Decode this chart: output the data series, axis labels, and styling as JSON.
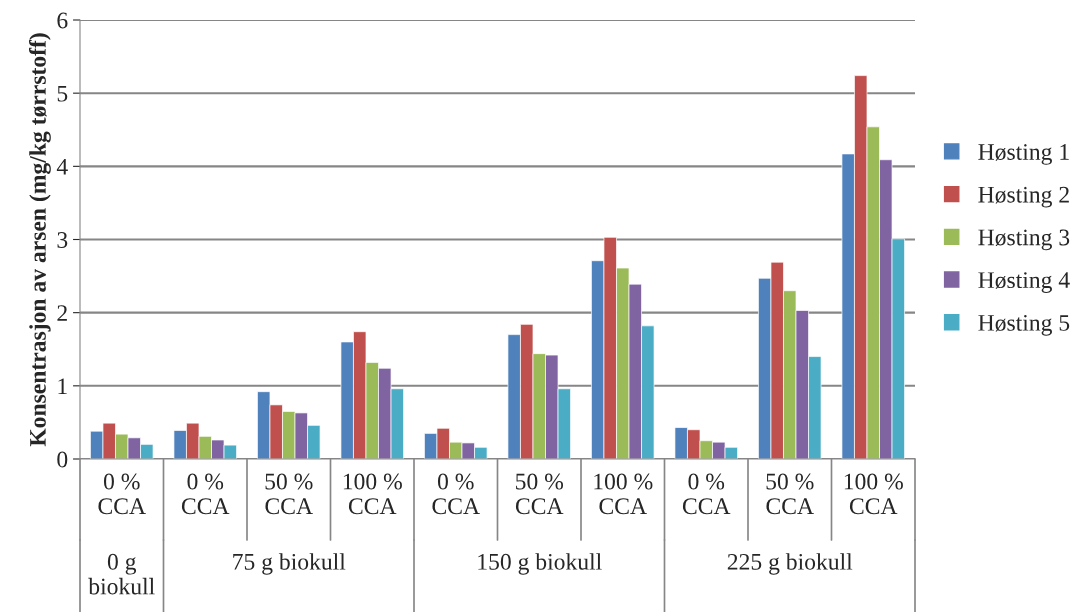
{
  "chart_data": {
    "type": "bar",
    "ylabel": "Konsentrasjon av arsen (mg/kg tørrstoff)",
    "categories": [
      "0 %\nCCA",
      "0 %\nCCA",
      "50 %\nCCA",
      "100 %\nCCA",
      "0 %\nCCA",
      "50 %\nCCA",
      "100 %\nCCA",
      "0 %\nCCA",
      "50 %\nCCA",
      "100 %\nCCA"
    ],
    "series": [
      {
        "name": "Høsting 1",
        "color": "#4f81bd",
        "values": [
          0.38,
          0.39,
          0.92,
          1.6,
          0.35,
          1.7,
          2.71,
          0.43,
          2.47,
          4.17
        ]
      },
      {
        "name": "Høsting 2",
        "color": "#c0504d",
        "values": [
          0.49,
          0.49,
          0.74,
          1.74,
          0.42,
          1.84,
          3.03,
          0.4,
          2.69,
          5.24
        ]
      },
      {
        "name": "Høsting 3",
        "color": "#9bbb59",
        "values": [
          0.34,
          0.31,
          0.65,
          1.32,
          0.23,
          1.44,
          2.61,
          0.25,
          2.3,
          4.54
        ]
      },
      {
        "name": "Høsting 4",
        "color": "#8064a2",
        "values": [
          0.29,
          0.26,
          0.63,
          1.24,
          0.22,
          1.42,
          2.39,
          0.23,
          2.03,
          4.09
        ]
      },
      {
        "name": "Høsting 5",
        "color": "#4bacc6",
        "values": [
          0.2,
          0.19,
          0.46,
          0.96,
          0.16,
          0.96,
          1.82,
          0.16,
          1.4,
          3.01
        ]
      }
    ],
    "annotations": [
      "0 g\nbiokull",
      "75 g biokull",
      "150 g biokull",
      "225 g biokull"
    ],
    "ylim": [
      0,
      6
    ],
    "yticks": [
      0,
      1,
      2,
      3,
      4,
      5,
      6
    ],
    "grid": "y",
    "legend": "right"
  }
}
